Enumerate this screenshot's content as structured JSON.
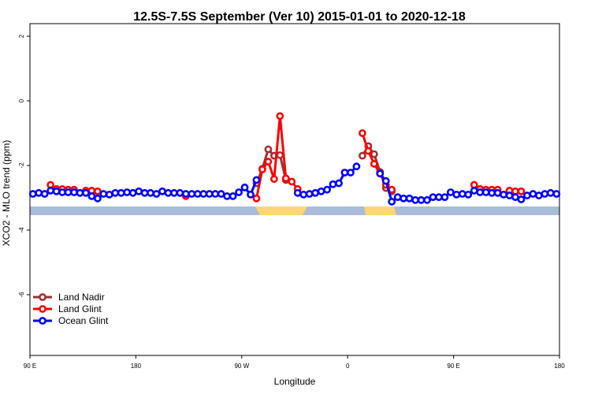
{
  "chart_data": {
    "type": "line",
    "title": "12.5S-7.5S September (Ver 10)   2015-01-01 to 2020-12-18",
    "x_label": "Longitude",
    "y_label": "XCO2 - MLO trend (ppm)",
    "xlim": [
      90,
      540
    ],
    "ylim": [
      -7.88,
      2.39
    ],
    "xticks": [
      {
        "value": 90,
        "label": "90 E"
      },
      180,
      {
        "value": 270,
        "label": "90 W"
      },
      {
        "value": 360,
        "label": "0"
      },
      {
        "value": 450,
        "label": "90 E"
      },
      {
        "value": 540,
        "label": "180"
      }
    ],
    "yticks": [
      -6,
      -4,
      -2,
      0,
      2
    ],
    "grid": false,
    "legend": "bottomleft",
    "x": [
      92.5,
      97.5,
      102.5,
      107.5,
      112.5,
      117.5,
      122.5,
      127.5,
      132.5,
      137.5,
      142.5,
      147.5,
      152.5,
      157.5,
      162.5,
      167.5,
      172.5,
      177.5,
      182.5,
      187.5,
      192.5,
      197.5,
      202.5,
      207.5,
      212.5,
      217.5,
      222.5,
      227.5,
      232.5,
      237.5,
      242.5,
      247.5,
      252.5,
      257.5,
      262.5,
      267.5,
      272.5,
      277.5,
      282.5,
      287.5,
      292.5,
      297.5,
      302.5,
      307.5,
      312.5,
      317.5,
      322.5,
      327.5,
      332.5,
      337.5,
      342.5,
      347.5,
      352.5,
      357.5,
      362.5,
      367.5,
      372.5,
      377.5,
      382.5,
      387.5,
      392.5,
      397.5,
      402.5,
      407.5,
      412.5,
      417.5,
      422.5,
      427.5,
      432.5,
      437.5,
      442.5,
      447.5,
      452.5,
      457.5,
      462.5,
      467.5,
      472.5,
      477.5,
      482.5,
      487.5,
      492.5,
      497.5,
      502.5,
      507.5,
      512.5,
      517.5,
      522.5,
      527.5,
      532.5,
      537.5
    ],
    "series": [
      {
        "name": "Land Nadir",
        "color": "#a03030",
        "values": [
          null,
          null,
          null,
          null,
          -2.73,
          -2.75,
          null,
          null,
          null,
          -2.78,
          -2.82,
          null,
          null,
          null,
          null,
          null,
          null,
          null,
          null,
          null,
          null,
          null,
          null,
          null,
          null,
          null,
          null,
          null,
          null,
          null,
          null,
          null,
          null,
          null,
          null,
          null,
          null,
          null,
          -2.55,
          -2.1,
          -1.5,
          -1.7,
          -1.68,
          -2.45,
          null,
          null,
          null,
          null,
          null,
          null,
          null,
          null,
          null,
          null,
          null,
          null,
          -1.7,
          -1.4,
          -1.65,
          -2.2,
          -2.7,
          -2.8,
          null,
          null,
          null,
          null,
          null,
          null,
          null,
          null,
          null,
          null,
          null,
          null,
          null,
          null,
          -2.73,
          null,
          -2.78,
          null,
          null,
          -2.8,
          null,
          null,
          null,
          null,
          null,
          null,
          null,
          null
        ]
      },
      {
        "name": "Land Glint",
        "color": "#ff0000",
        "values": [
          null,
          null,
          null,
          -2.6,
          -2.73,
          -2.73,
          -2.75,
          -2.75,
          null,
          -2.78,
          -2.78,
          -2.8,
          null,
          null,
          null,
          null,
          null,
          null,
          null,
          null,
          null,
          null,
          null,
          null,
          null,
          null,
          -2.95,
          null,
          null,
          null,
          null,
          null,
          null,
          null,
          null,
          null,
          null,
          null,
          -3.02,
          -2.12,
          -1.88,
          -2.42,
          -0.47,
          -2.4,
          -2.5,
          -2.73,
          null,
          null,
          null,
          null,
          null,
          null,
          null,
          null,
          null,
          null,
          -1.0,
          -1.55,
          -1.95,
          -2.25,
          -2.6,
          -2.75,
          null,
          null,
          null,
          null,
          null,
          null,
          null,
          null,
          null,
          null,
          null,
          null,
          null,
          -2.6,
          -2.73,
          -2.75,
          -2.75,
          -2.75,
          null,
          -2.78,
          -2.8,
          -2.8,
          null,
          null,
          null,
          null,
          null,
          null
        ]
      },
      {
        "name": "Ocean Glint",
        "color": "#0000ff",
        "values": [
          -2.88,
          -2.85,
          -2.88,
          -2.78,
          -2.8,
          -2.83,
          -2.83,
          -2.83,
          -2.85,
          -2.85,
          -2.95,
          -3.02,
          -2.88,
          -2.9,
          -2.85,
          -2.85,
          -2.83,
          -2.85,
          -2.8,
          -2.85,
          -2.85,
          -2.88,
          -2.8,
          -2.85,
          -2.85,
          -2.85,
          -2.88,
          -2.88,
          -2.88,
          -2.88,
          -2.88,
          -2.88,
          -2.88,
          -2.95,
          -2.95,
          -2.83,
          -2.68,
          -2.9,
          -2.45,
          null,
          null,
          null,
          null,
          null,
          null,
          -2.85,
          -2.9,
          -2.88,
          -2.85,
          -2.8,
          -2.75,
          -2.58,
          -2.55,
          -2.22,
          -2.22,
          -2.03,
          null,
          null,
          null,
          -2.25,
          -2.48,
          -3.12,
          -2.98,
          -3.02,
          -3.02,
          -3.07,
          -3.07,
          -3.07,
          -2.98,
          -2.98,
          -2.98,
          -2.83,
          -2.9,
          -2.88,
          -2.9,
          -2.78,
          -2.83,
          -2.83,
          -2.85,
          -2.85,
          -2.9,
          -2.93,
          -2.98,
          -3.05,
          -2.93,
          -2.88,
          -2.93,
          -2.88,
          -2.85,
          -2.88
        ]
      }
    ]
  }
}
